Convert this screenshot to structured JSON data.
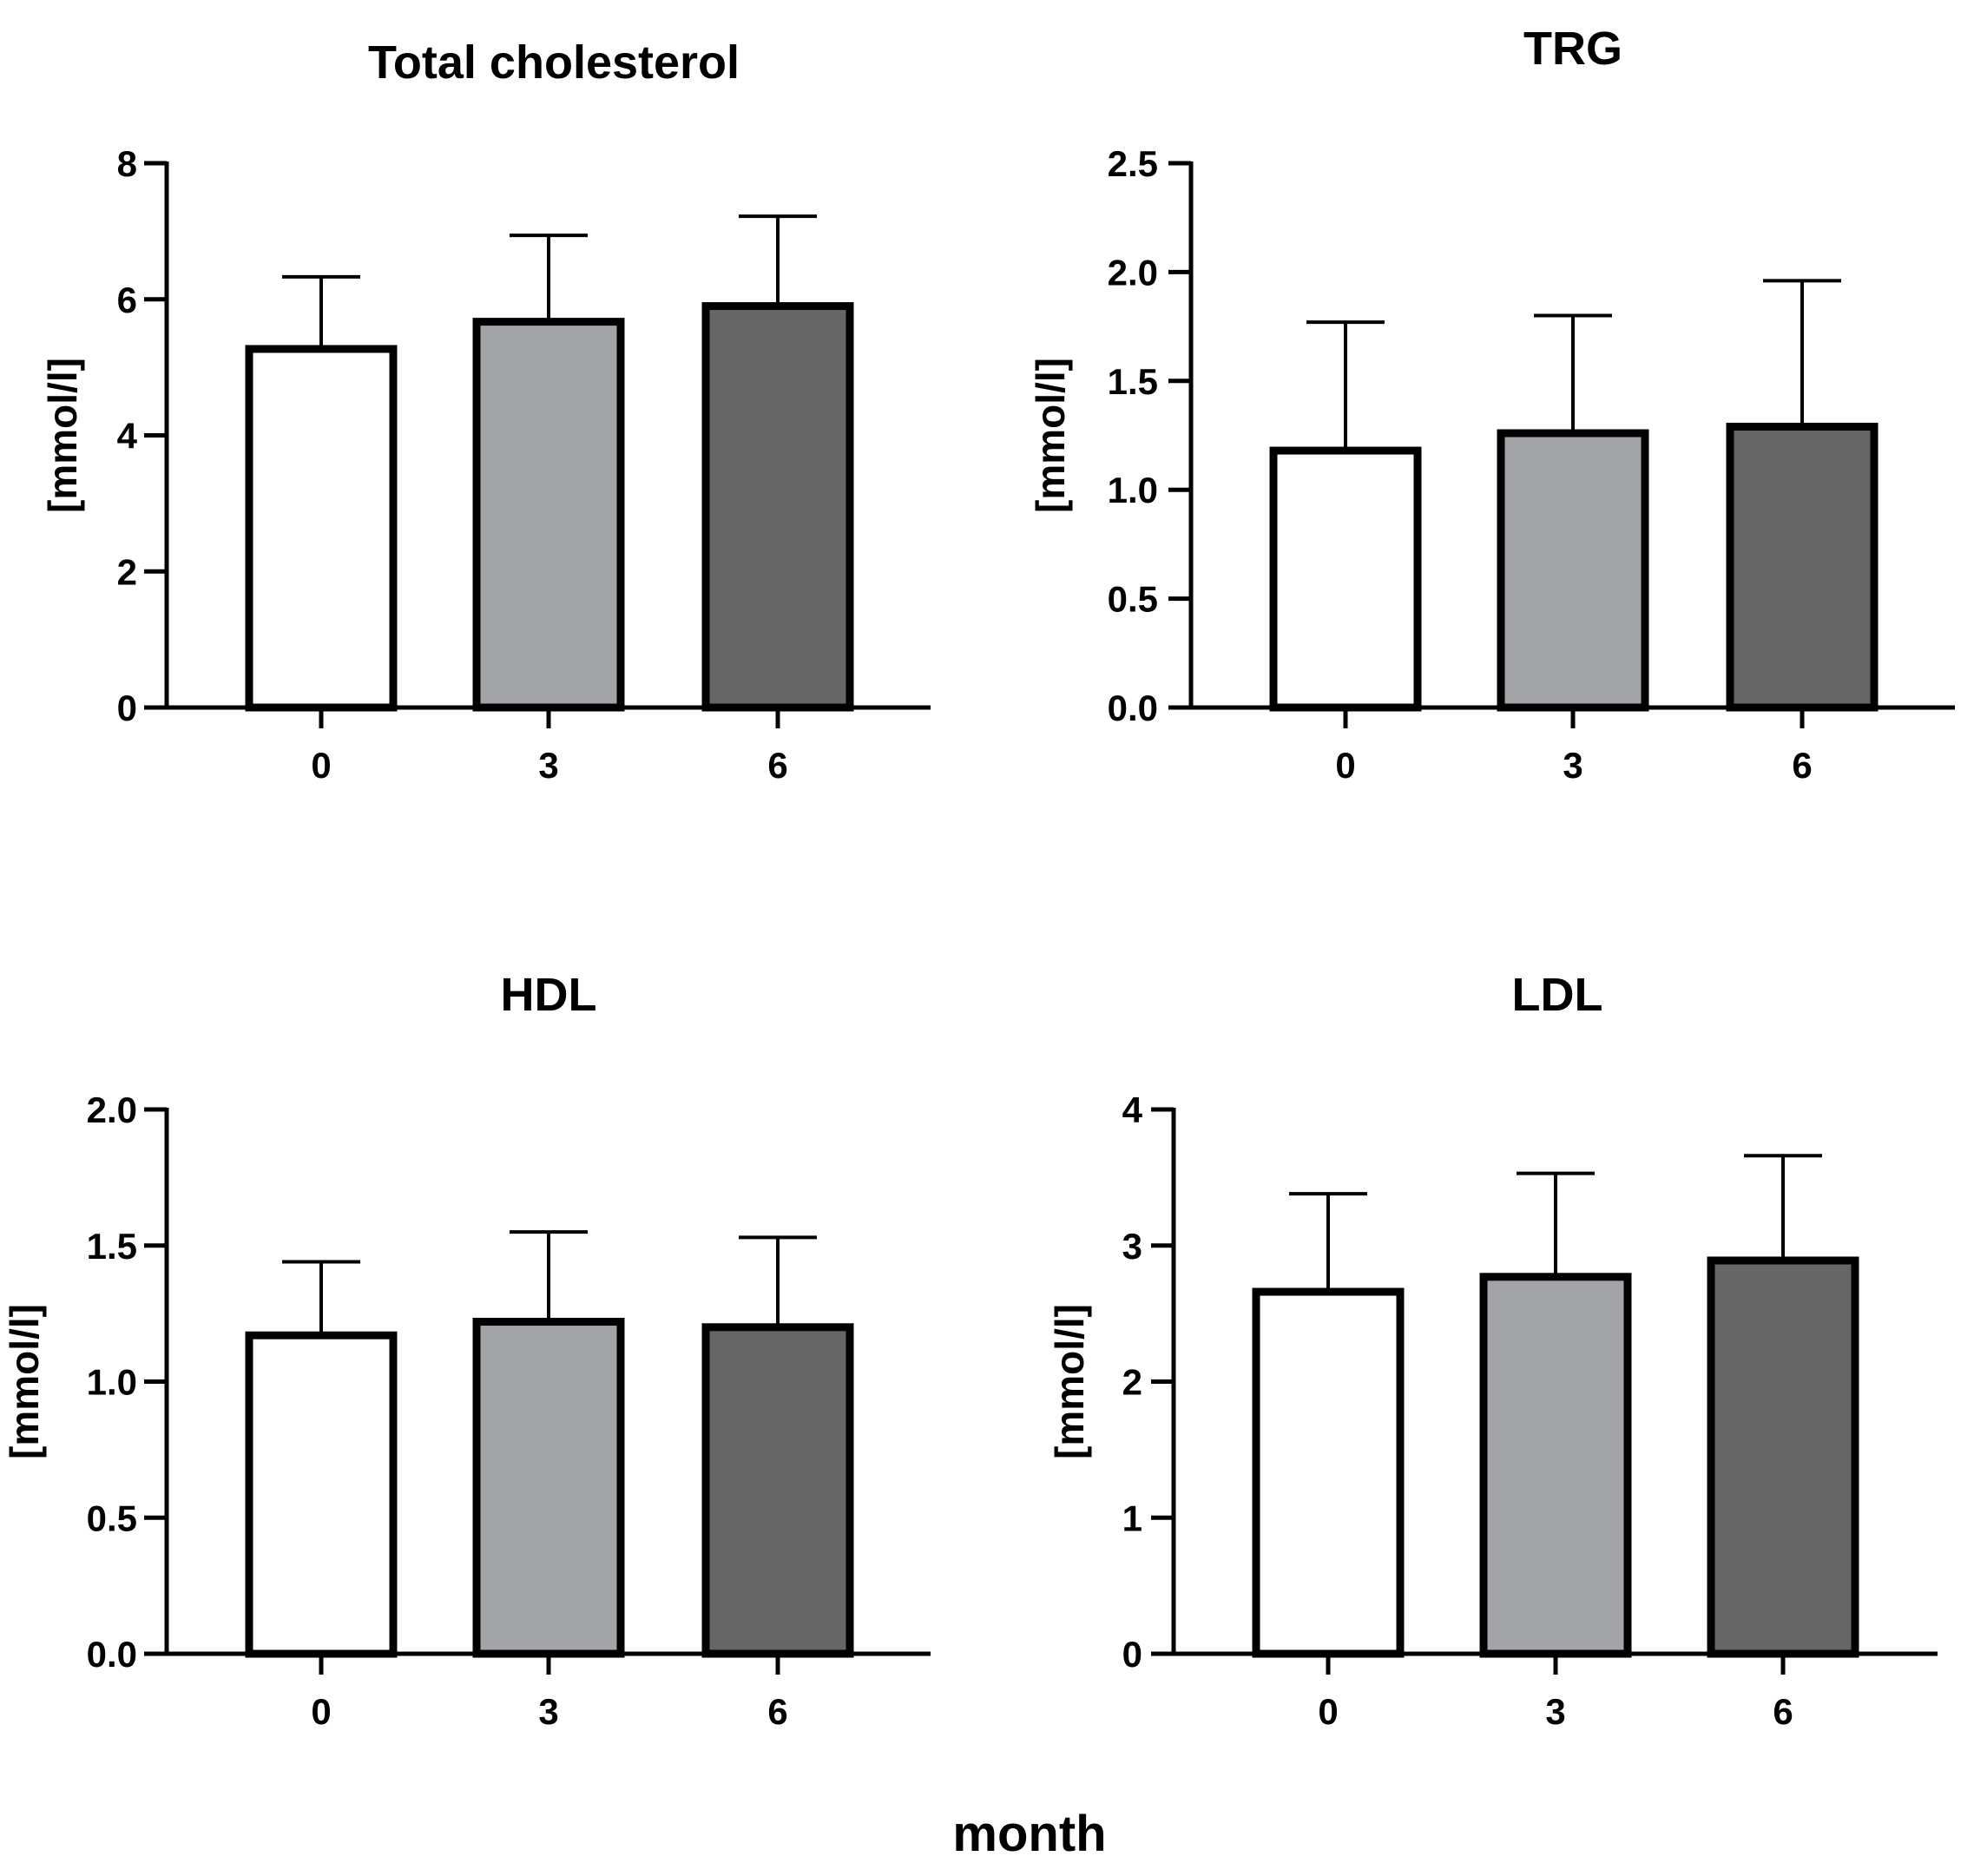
{
  "shared_xlabel": "month",
  "chart_data": [
    {
      "type": "bar",
      "title": "Total cholesterol",
      "xlabel": "month",
      "ylabel": "[mmol/l]",
      "categories": [
        "0",
        "3",
        "6"
      ],
      "values": [
        5.27,
        5.67,
        5.9
      ],
      "error_upper": [
        6.33,
        6.94,
        7.22
      ],
      "ylim": [
        0,
        8
      ],
      "yticks": [
        "0",
        "2",
        "4",
        "6",
        "8"
      ],
      "ytick_values": [
        0,
        2,
        4,
        6,
        8
      ],
      "grid": false,
      "bar_colors": [
        "#ffffff",
        "#a3a4a7",
        "#666666"
      ]
    },
    {
      "type": "bar",
      "title": "TRG",
      "xlabel": "month",
      "ylabel": "[mmol/l]",
      "categories": [
        "0",
        "3",
        "6"
      ],
      "values": [
        1.18,
        1.26,
        1.29
      ],
      "error_upper": [
        1.77,
        1.8,
        1.96
      ],
      "ylim": [
        0,
        2.5
      ],
      "yticks": [
        "0.0",
        "0.5",
        "1.0",
        "1.5",
        "2.0",
        "2.5"
      ],
      "ytick_values": [
        0,
        0.5,
        1.0,
        1.5,
        2.0,
        2.5
      ],
      "grid": false,
      "bar_colors": [
        "#ffffff",
        "#a3a4a7",
        "#666666"
      ]
    },
    {
      "type": "bar",
      "title": "HDL",
      "xlabel": "month",
      "ylabel": "[mmol/l]",
      "categories": [
        "0",
        "3",
        "6"
      ],
      "values": [
        1.17,
        1.22,
        1.2
      ],
      "error_upper": [
        1.44,
        1.55,
        1.53
      ],
      "ylim": [
        0,
        2.0
      ],
      "yticks": [
        "0.0",
        "0.5",
        "1.0",
        "1.5",
        "2.0"
      ],
      "ytick_values": [
        0,
        0.5,
        1.0,
        1.5,
        2.0
      ],
      "grid": false,
      "bar_colors": [
        "#ffffff",
        "#a3a4a7",
        "#666666"
      ]
    },
    {
      "type": "bar",
      "title": "LDL",
      "xlabel": "month",
      "ylabel": "[mmol/l]",
      "categories": [
        "0",
        "3",
        "6"
      ],
      "values": [
        2.66,
        2.77,
        2.89
      ],
      "error_upper": [
        3.38,
        3.53,
        3.66
      ],
      "ylim": [
        0,
        4
      ],
      "yticks": [
        "0",
        "1",
        "2",
        "3",
        "4"
      ],
      "ytick_values": [
        0,
        1,
        2,
        3,
        4
      ],
      "grid": false,
      "bar_colors": [
        "#ffffff",
        "#a3a4a7",
        "#666666"
      ]
    }
  ]
}
